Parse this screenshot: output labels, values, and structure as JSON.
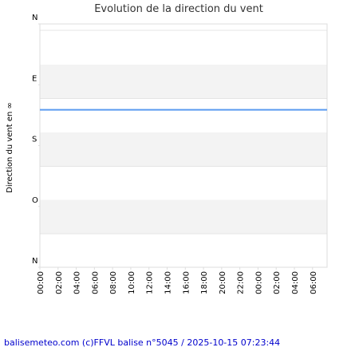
{
  "chart_data": {
    "type": "line",
    "title": "Evolution de la direction du vent",
    "ylabel": "Direction du vent en ∞",
    "footer": "balisemeteo.com (c)FFVL balise n°5045 / 2025-10-15 07:23:44",
    "ylim": [
      0,
      360
    ],
    "yticks": [
      {
        "value": 0,
        "label": "N"
      },
      {
        "value": 90,
        "label": "E"
      },
      {
        "value": 180,
        "label": "S"
      },
      {
        "value": 270,
        "label": "O"
      },
      {
        "value": 360,
        "label": "N"
      }
    ],
    "xlim": [
      0,
      31.6
    ],
    "xticks": [
      {
        "value": 0,
        "label": "00:00"
      },
      {
        "value": 2,
        "label": "02:00"
      },
      {
        "value": 4,
        "label": "04:00"
      },
      {
        "value": 6,
        "label": "06:00"
      },
      {
        "value": 8,
        "label": "08:00"
      },
      {
        "value": 10,
        "label": "10:00"
      },
      {
        "value": 12,
        "label": "12:00"
      },
      {
        "value": 14,
        "label": "14:00"
      },
      {
        "value": 16,
        "label": "16:00"
      },
      {
        "value": 18,
        "label": "18:00"
      },
      {
        "value": 20,
        "label": "20:00"
      },
      {
        "value": 22,
        "label": "22:00"
      },
      {
        "value": 24,
        "label": "00:00"
      },
      {
        "value": 26,
        "label": "02:00"
      },
      {
        "value": 28,
        "label": "04:00"
      },
      {
        "value": 30,
        "label": "06:00"
      }
    ],
    "x": [
      0,
      31.6
    ],
    "series": [
      {
        "name": "direction",
        "color": "#5b9bf0",
        "values": [
          127,
          127
        ]
      }
    ]
  }
}
